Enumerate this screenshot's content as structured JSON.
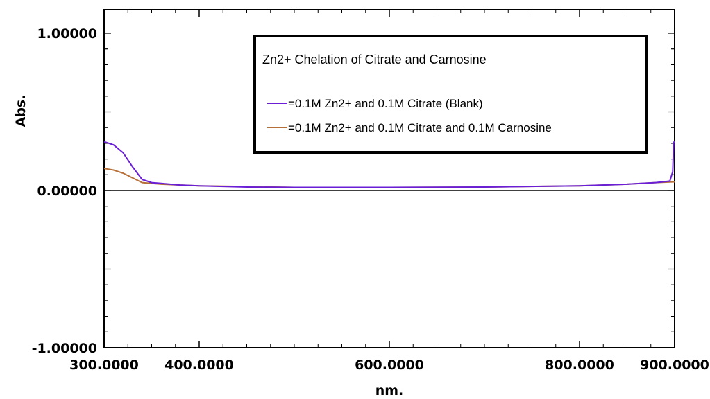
{
  "chart_data": {
    "type": "line",
    "title": "",
    "xlabel": "nm.",
    "ylabel": "Abs.",
    "xlim": [
      300,
      900
    ],
    "ylim": [
      -1,
      1
    ],
    "x_ticks": [
      300,
      400,
      600,
      800,
      900
    ],
    "x_tick_labels": [
      "300.0000",
      "400.0000",
      "600.0000",
      "800.0000",
      "900.0000"
    ],
    "y_ticks": [
      1,
      0,
      -1
    ],
    "y_tick_labels": [
      "1.00000",
      "0.00000",
      "-1.00000"
    ],
    "legend": {
      "placement": "top-right",
      "title": "Zn2+ Chelation of Citrate and Carnosine"
    },
    "series": [
      {
        "name": "=0.1M Zn2+ and 0.1M Citrate (Blank)",
        "color": "#6a1fd6",
        "x": [
          300,
          310,
          320,
          330,
          340,
          350,
          360,
          380,
          400,
          450,
          500,
          600,
          700,
          800,
          850,
          880,
          895,
          898,
          899,
          899.5,
          900
        ],
        "y": [
          0.31,
          0.29,
          0.24,
          0.15,
          0.07,
          0.05,
          0.045,
          0.035,
          0.03,
          0.022,
          0.02,
          0.02,
          0.022,
          0.03,
          0.04,
          0.05,
          0.06,
          0.12,
          0.3,
          0.31,
          0.31
        ]
      },
      {
        "name": "=0.1M Zn2+ and 0.1M Citrate and 0.1M Carnosine",
        "color": "#b5703a",
        "x": [
          300,
          310,
          320,
          330,
          340,
          350,
          360,
          380,
          400,
          450,
          500,
          600,
          700,
          800,
          850,
          880,
          900
        ],
        "y": [
          0.14,
          0.13,
          0.11,
          0.08,
          0.05,
          0.045,
          0.04,
          0.035,
          0.03,
          0.025,
          0.02,
          0.02,
          0.022,
          0.03,
          0.04,
          0.05,
          0.055
        ]
      }
    ],
    "zero_line": true
  }
}
